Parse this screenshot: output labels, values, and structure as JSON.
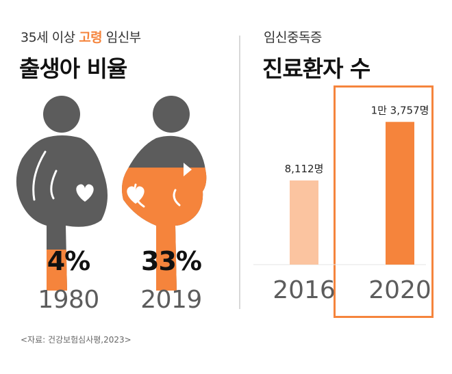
{
  "left": {
    "subtitle_pre": "35세 이상 ",
    "subtitle_highlight": "고령",
    "subtitle_post": " 임신부",
    "title": "출생아 비율",
    "figures": [
      {
        "year": "1980",
        "percent_label": "4%",
        "percent": 4
      },
      {
        "year": "2019",
        "percent_label": "33%",
        "percent": 33
      }
    ]
  },
  "right": {
    "subtitle": "임신중독증",
    "title": "진료환자 수"
  },
  "source": "<자료: 건강보험심사평,2023>",
  "colors": {
    "accent": "#f5843c",
    "accent_light": "#fbc4a0",
    "figure_gray": "#5c5c5c",
    "divider": "#d8d8d8",
    "highlight_box": "#f5843c"
  },
  "chart_data": [
    {
      "type": "pictogram",
      "title": "출생아 비율",
      "categories": [
        "1980",
        "2019"
      ],
      "values": [
        4,
        33
      ],
      "value_labels": [
        "4%",
        "33%"
      ],
      "unit": "%"
    },
    {
      "type": "bar",
      "title": "진료환자 수",
      "categories": [
        "2016",
        "2020"
      ],
      "values": [
        8112,
        13757
      ],
      "value_labels": [
        "8,112명",
        "1만 3,757명"
      ],
      "ylim": [
        0,
        14500
      ],
      "grid": false,
      "highlight": "2020"
    }
  ]
}
